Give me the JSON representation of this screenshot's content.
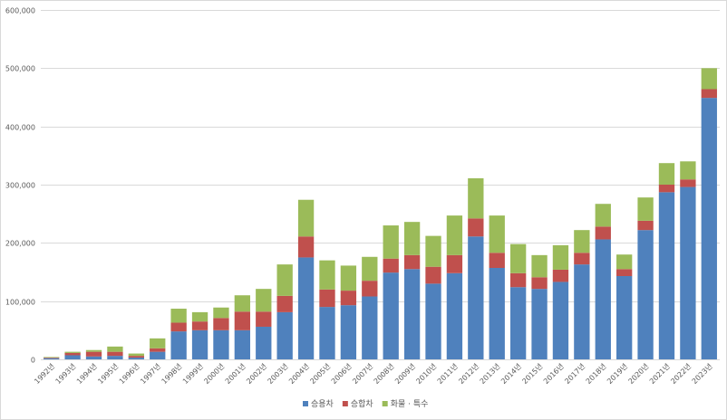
{
  "chart_data": {
    "type": "bar",
    "stacked": true,
    "categories": [
      "1992년",
      "1993년",
      "1994년",
      "1995년",
      "1996년",
      "1997년",
      "1998년",
      "1999년",
      "2000년",
      "2001년",
      "2002년",
      "2003년",
      "2004년",
      "2005년",
      "2006년",
      "2007년",
      "2008년",
      "2009년",
      "2010년",
      "2011년",
      "2012년",
      "2013년",
      "2014년",
      "2015년",
      "2016년",
      "2017년",
      "2018년",
      "2019년",
      "2020년",
      "2021년",
      "2022년",
      "2023년"
    ],
    "series": [
      {
        "name": "승용차",
        "color": "#4f81bd",
        "values": [
          2000,
          7000,
          5000,
          6000,
          3000,
          13000,
          48000,
          50000,
          50000,
          50000,
          56000,
          81000,
          175000,
          90000,
          93000,
          108000,
          149000,
          155000,
          130000,
          148000,
          211000,
          157000,
          124000,
          121000,
          133000,
          163000,
          206000,
          143000,
          222000,
          287000,
          296000,
          449000
        ]
      },
      {
        "name": "승합차",
        "color": "#c0504d",
        "values": [
          1000,
          4000,
          8000,
          7000,
          3000,
          6000,
          15000,
          15000,
          21000,
          32000,
          26000,
          28000,
          36000,
          30000,
          25000,
          27000,
          24000,
          24000,
          29000,
          31000,
          31000,
          26000,
          24000,
          20000,
          21000,
          20000,
          22000,
          12000,
          16000,
          13000,
          13000,
          15000
        ]
      },
      {
        "name": "화물 · 특수",
        "color": "#9bbb59",
        "values": [
          1000,
          2000,
          3000,
          9000,
          4000,
          17000,
          24000,
          16000,
          18000,
          28000,
          39000,
          54000,
          63000,
          50000,
          43000,
          41000,
          57000,
          57000,
          53000,
          68000,
          69000,
          64000,
          50000,
          38000,
          42000,
          39000,
          39000,
          25000,
          40000,
          37000,
          31000,
          36000
        ]
      }
    ],
    "title": "",
    "xlabel": "",
    "ylabel": "",
    "ylim": [
      0,
      600000
    ],
    "yticks": [
      0,
      100000,
      200000,
      300000,
      400000,
      500000,
      600000
    ],
    "ytick_labels": [
      "0",
      "100,000",
      "200,000",
      "300,000",
      "400,000",
      "500,000",
      "600,000"
    ],
    "grid": true,
    "legend_position": "bottom"
  }
}
